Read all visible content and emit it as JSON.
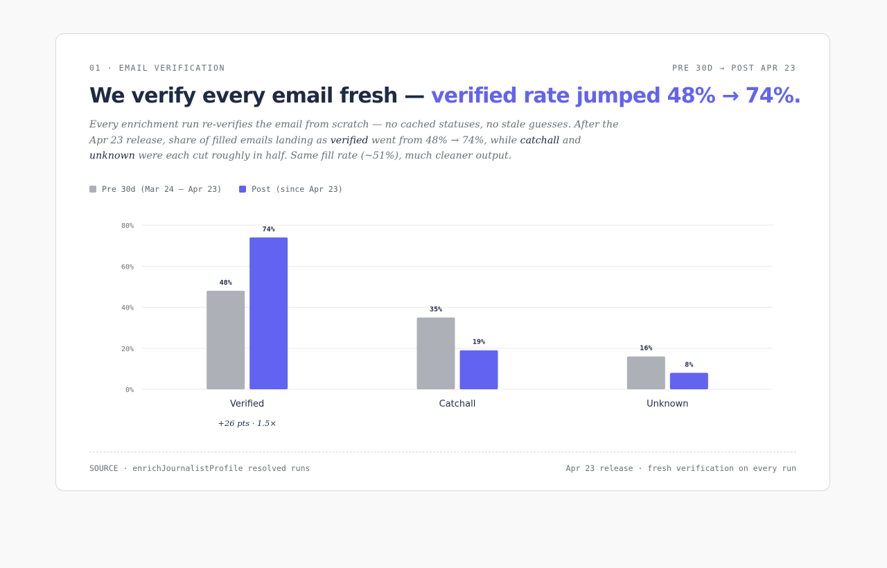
{
  "header": {
    "eyebrow_left": "01 · EMAIL VERIFICATION",
    "eyebrow_right": "PRE 30D → POST APR 23",
    "title_main": "We verify every email fresh — ",
    "title_accent": "verified rate jumped 48% → 74%."
  },
  "subtitle": {
    "part1": "Every enrichment run re-verifies the email from scratch — no cached statuses, no stale guesses. After the Apr 23 release, share of filled emails landing as ",
    "em1": "verified",
    "part2": " went from 48% → 74%, while ",
    "em2": "catchall",
    "part3": " and ",
    "em3": "unknown",
    "part4": " were each cut roughly in half. Same fill rate (~51%), much cleaner output."
  },
  "legend": [
    {
      "label": "Pre 30d (Mar 24 – Apr 23)",
      "color": "#adb0b6"
    },
    {
      "label": "Post (since Apr 23)",
      "color": "#6363f1"
    }
  ],
  "colors": {
    "pre": "#adb0b6",
    "post": "#6363f1",
    "grid": "#e8e8ea",
    "accent": "#6363f1"
  },
  "chart_data": {
    "type": "bar",
    "categories": [
      "Verified",
      "Catchall",
      "Unknown"
    ],
    "series": [
      {
        "name": "Pre 30d (Mar 24 – Apr 23)",
        "values": [
          48,
          35,
          16
        ]
      },
      {
        "name": "Post (since Apr 23)",
        "values": [
          74,
          19,
          8
        ]
      }
    ],
    "data_labels": [
      [
        "48%",
        "35%",
        "16%"
      ],
      [
        "74%",
        "19%",
        "8%"
      ]
    ],
    "ylim": [
      0,
      80
    ],
    "yticks": [
      0,
      20,
      40,
      60,
      80
    ],
    "ytick_labels": [
      "0%",
      "20%",
      "40%",
      "60%",
      "80%"
    ],
    "annotations": [
      {
        "category": "Verified",
        "text": "+26 pts · 1.5×"
      }
    ],
    "grid": true,
    "legend_position": "top-left"
  },
  "footer": {
    "left": "SOURCE · enrichJournalistProfile resolved runs",
    "right": "Apr 23 release · fresh verification on every run"
  }
}
